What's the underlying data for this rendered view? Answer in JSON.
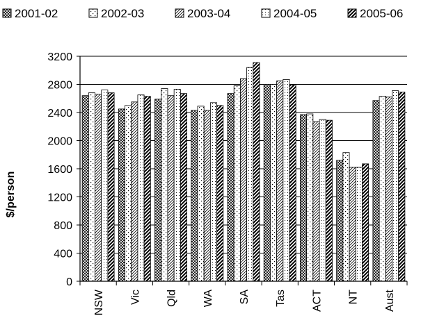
{
  "chart_data": {
    "type": "bar",
    "xlabel": "",
    "ylabel": "$/person",
    "ylim": [
      0,
      3200
    ],
    "yticks": [
      0,
      400,
      800,
      1200,
      1600,
      2000,
      2400,
      2800,
      3200
    ],
    "grid": "horizontal",
    "legend_position": "top",
    "categories": [
      "NSW",
      "Vic",
      "Qld",
      "WA",
      "SA",
      "Tas",
      "ACT",
      "NT",
      "Aust"
    ],
    "series": [
      {
        "name": "2001-02",
        "pattern": "crosshatch",
        "values": [
          2640,
          2450,
          2590,
          2430,
          2670,
          2800,
          2370,
          1720,
          2570
        ]
      },
      {
        "name": "2002-03",
        "pattern": "sparse-dots",
        "values": [
          2680,
          2500,
          2740,
          2490,
          2780,
          2800,
          2380,
          1830,
          2630
        ]
      },
      {
        "name": "2003-04",
        "pattern": "diagonal-hatch",
        "values": [
          2660,
          2550,
          2640,
          2430,
          2880,
          2850,
          2270,
          1620,
          2620
        ]
      },
      {
        "name": "2004-05",
        "pattern": "dots",
        "values": [
          2720,
          2650,
          2730,
          2540,
          3040,
          2870,
          2300,
          1620,
          2710
        ]
      },
      {
        "name": "2005-06",
        "pattern": "heavy-diagonal",
        "values": [
          2680,
          2630,
          2670,
          2500,
          3110,
          2790,
          2290,
          1670,
          2690
        ]
      }
    ]
  },
  "colors": {
    "axis": "#000000",
    "grid": "#000000",
    "bar_outline": "#000000",
    "background": "#ffffff"
  }
}
